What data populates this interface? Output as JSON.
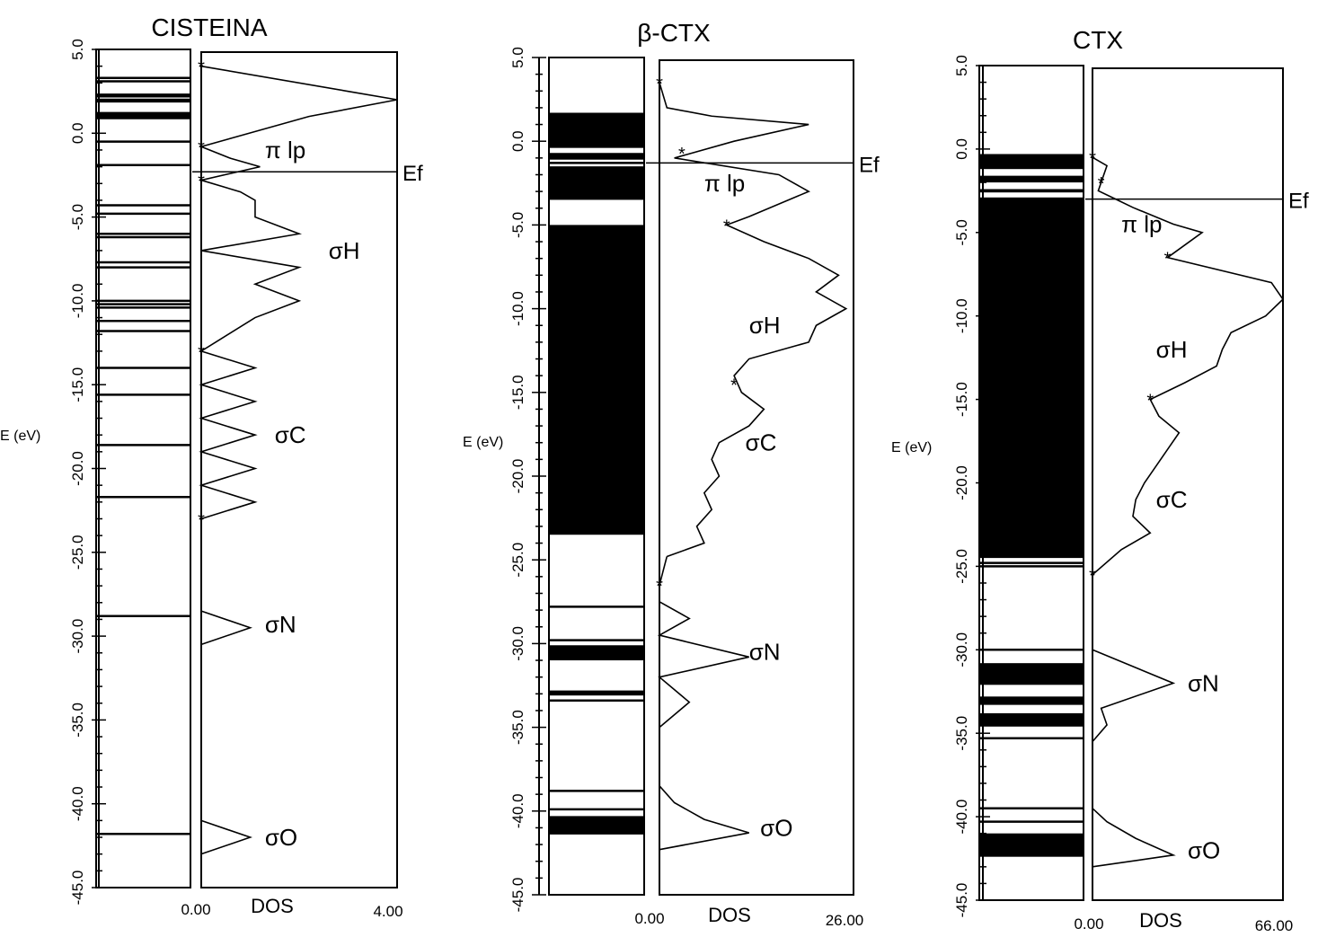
{
  "chart_data": [
    {
      "type": "line",
      "title": "CISTEINA",
      "ylabel": "E (eV)",
      "xlabel": "DOS",
      "x_min_label": "0.00",
      "x_max_label": "4.00",
      "xlim": [
        0,
        4
      ],
      "ylim": [
        -45,
        5
      ],
      "yticks": [
        "5.0",
        "0.0",
        "-5.0",
        "-10.0",
        "-15.0",
        "-20.0",
        "-25.0",
        "-30.0",
        "-35.0",
        "-40.0",
        "-45.0"
      ],
      "fermi_label": "Ef",
      "fermi_level": -2.3,
      "levels": [
        3.3,
        3.1,
        2.3,
        2.2,
        2.0,
        1.9,
        1.2,
        1.1,
        1.0,
        0.9,
        -0.5,
        -1.9,
        -4.3,
        -4.8,
        -6.0,
        -6.2,
        -7.7,
        -8.0,
        -10.0,
        -10.2,
        -10.4,
        -11.2,
        -11.8,
        -14.0,
        -15.6,
        -18.6,
        -21.7,
        -28.8,
        -41.8
      ],
      "level_bands": [],
      "dos": {
        "e": [
          4.0,
          2.5,
          2.0,
          1.0,
          -0.8,
          -1.5,
          -2.0,
          -2.8,
          -3.5,
          -4.0,
          -5.0,
          -6.0,
          -7.0,
          -8.0,
          -9.0,
          -10.0,
          -11.0,
          -13.0,
          -14.0,
          -15.0,
          -16.0,
          -17.0,
          -18.0,
          -19.0,
          -20.0,
          -21.0,
          -22.0,
          -23.0
        ],
        "dos": [
          0.0,
          3.0,
          4.0,
          2.2,
          0.0,
          0.6,
          1.2,
          0.0,
          0.8,
          1.1,
          1.1,
          2.0,
          0.0,
          2.0,
          1.1,
          2.0,
          1.1,
          0.0,
          1.1,
          0.0,
          1.1,
          0.0,
          1.1,
          0.0,
          1.1,
          0.0,
          1.1,
          0.0
        ],
        "markers": [
          {
            "e": 4.0,
            "dos": 0.0
          },
          {
            "e": -0.8,
            "dos": 0.0
          },
          {
            "e": -2.8,
            "dos": 0.0
          },
          {
            "e": -13.0,
            "dos": 0.0
          },
          {
            "e": -23.0,
            "dos": 0.0
          }
        ]
      },
      "extra_dos_segments": [
        {
          "e": [
            -28.5,
            -29.5,
            -30.5
          ],
          "dos": [
            0.0,
            1.0,
            0.0
          ]
        },
        {
          "e": [
            -41.0,
            -42.0,
            -43.0
          ],
          "dos": [
            0.0,
            1.0,
            0.0
          ]
        }
      ],
      "annotations": [
        {
          "text": "π lp",
          "e": -1.0,
          "dos": 1.3
        },
        {
          "text": "σH",
          "e": -7.0,
          "dos": 2.6
        },
        {
          "text": "σC",
          "e": -18.0,
          "dos": 1.5
        },
        {
          "text": "σN",
          "e": -29.3,
          "dos": 1.3
        },
        {
          "text": "σO",
          "e": -42.0,
          "dos": 1.3
        }
      ]
    },
    {
      "type": "line",
      "title": "β-CTX",
      "ylabel": "E (eV)",
      "xlabel": "DOS",
      "x_min_label": "0.00",
      "x_max_label": "26.00",
      "xlim": [
        0,
        26
      ],
      "ylim": [
        -45,
        5
      ],
      "yticks": [
        "5.0",
        "0.0",
        "-5.0",
        "-10.0",
        "-15.0",
        "-20.0",
        "-25.0",
        "-30.0",
        "-35.0",
        "-40.0",
        "-45.0"
      ],
      "fermi_label": "Ef",
      "fermi_level": -1.3,
      "levels": [
        -1.3,
        -2.2,
        -27.8,
        -29.8,
        -33.4,
        -38.8,
        -39.9
      ],
      "level_bands": [
        [
          1.7,
          -0.4
        ],
        [
          -0.7,
          -1.1
        ],
        [
          -1.5,
          -3.5
        ],
        [
          -5.0,
          -23.5
        ],
        [
          -30.1,
          -31.0
        ],
        [
          -32.8,
          -33.1
        ],
        [
          -40.3,
          -41.4
        ]
      ],
      "dos": {
        "e": [
          3.5,
          2.0,
          1.5,
          1.0,
          0.0,
          -1.0,
          -2.0,
          -3.0,
          -4.5,
          -5.0,
          -6.0,
          -7.0,
          -8.0,
          -9.0,
          -10.0,
          -11.0,
          -12.0,
          -13.0,
          -14.0,
          -15.0,
          -16.0,
          -17.0,
          -18.0,
          -19.0,
          -20.0,
          -21.0,
          -22.0,
          -23.0,
          -24.0,
          -24.8
        ],
        "dos": [
          0.0,
          1.0,
          7.0,
          20.0,
          10.0,
          2.0,
          16.0,
          20.0,
          12.0,
          9.0,
          14.0,
          20.0,
          24.0,
          21.0,
          25.0,
          21.0,
          20.0,
          12.0,
          10.0,
          11.0,
          14.0,
          12.0,
          8.0,
          7.0,
          8.0,
          6.0,
          7.0,
          5.0,
          6.0,
          1.0
        ],
        "markers": [
          {
            "e": 3.5,
            "dos": 0.0
          },
          {
            "e": -0.7,
            "dos": 3.0
          },
          {
            "e": -5.0,
            "dos": 9.0
          },
          {
            "e": -14.5,
            "dos": 10.0
          },
          {
            "e": -26.5,
            "dos": 0.0
          }
        ]
      },
      "extra_dos_segments": [
        {
          "e": [
            -24.8,
            -26.5
          ],
          "dos": [
            1.0,
            0.0
          ]
        },
        {
          "e": [
            -27.5,
            -28.5,
            -29.5,
            -30.8,
            -32.0,
            -33.5,
            -35.0
          ],
          "dos": [
            0.0,
            4.0,
            0.0,
            12.0,
            0.0,
            4.0,
            0.0
          ]
        },
        {
          "e": [
            -38.5,
            -39.5,
            -40.5,
            -41.3,
            -42.3
          ],
          "dos": [
            0.0,
            2.0,
            6.0,
            12.0,
            0.0
          ]
        }
      ],
      "annotations": [
        {
          "text": "π lp",
          "e": -2.5,
          "dos": 6.0
        },
        {
          "text": "σH",
          "e": -11.0,
          "dos": 12.0
        },
        {
          "text": "σC",
          "e": -18.0,
          "dos": 11.5
        },
        {
          "text": "σN",
          "e": -30.5,
          "dos": 12.0
        },
        {
          "text": "σO",
          "e": -41.0,
          "dos": 13.5
        }
      ]
    },
    {
      "type": "line",
      "title": "CTX",
      "ylabel": "E (eV)",
      "xlabel": "DOS",
      "x_min_label": "0.00",
      "x_max_label": "66.00",
      "xlim": [
        0,
        66
      ],
      "ylim": [
        -45,
        5
      ],
      "yticks": [
        "5.0",
        "0.0",
        "-5.0",
        "-10.0",
        "-15.0",
        "-20.0",
        "-25.0",
        "-30.0",
        "-35.0",
        "-40.0",
        "-45.0"
      ],
      "fermi_label": "Ef",
      "fermi_level": -3.0,
      "levels": [
        -24.8,
        -25.0,
        -30.0,
        -35.3,
        -39.5,
        -40.3
      ],
      "level_bands": [
        [
          -0.3,
          -1.2
        ],
        [
          -1.6,
          -2.0
        ],
        [
          -2.4,
          -2.6
        ],
        [
          -2.9,
          -24.5
        ],
        [
          -30.8,
          -32.1
        ],
        [
          -32.8,
          -33.3
        ],
        [
          -33.8,
          -34.6
        ],
        [
          -41.0,
          -42.4
        ]
      ],
      "dos": {
        "e": [
          -0.5,
          -1.0,
          -2.0,
          -2.5,
          -3.0,
          -3.5,
          -4.5,
          -5.0,
          -6.5,
          -8.0,
          -9.0,
          -10.0,
          -11.0,
          -12.0,
          -13.0,
          -14.0,
          -15.0,
          -16.0,
          -17.0,
          -18.0,
          -19.0,
          -20.0,
          -21.0,
          -22.0,
          -23.0,
          -24.0,
          -25.5
        ],
        "dos": [
          0.0,
          5.0,
          3.0,
          2.0,
          8.0,
          14.0,
          28.0,
          38.0,
          26.0,
          62.0,
          66.0,
          60.0,
          48.0,
          45.0,
          43.0,
          32.0,
          20.0,
          23.0,
          30.0,
          26.0,
          22.0,
          18.0,
          15.0,
          14.0,
          20.0,
          10.0,
          0.0
        ],
        "markers": [
          {
            "e": -0.5,
            "dos": 0.0
          },
          {
            "e": -2.0,
            "dos": 3.0
          },
          {
            "e": -6.5,
            "dos": 26.0
          },
          {
            "e": -15.0,
            "dos": 20.0
          },
          {
            "e": -25.5,
            "dos": 0.0
          }
        ]
      },
      "extra_dos_segments": [
        {
          "e": [
            -30.0,
            -32.0,
            -33.5,
            -34.5,
            -35.5
          ],
          "dos": [
            0.0,
            28.0,
            3.0,
            5.0,
            0.0
          ]
        },
        {
          "e": [
            -39.5,
            -40.3,
            -41.3,
            -42.3,
            -43.0
          ],
          "dos": [
            0.0,
            5.0,
            15.0,
            28.0,
            0.0
          ]
        }
      ],
      "annotations": [
        {
          "text": "π lp",
          "e": -4.5,
          "dos": 10.0
        },
        {
          "text": "σH",
          "e": -12.0,
          "dos": 22.0
        },
        {
          "text": "σC",
          "e": -21.0,
          "dos": 22.0
        },
        {
          "text": "σN",
          "e": -32.0,
          "dos": 33.0
        },
        {
          "text": "σO",
          "e": -42.0,
          "dos": 33.0
        }
      ]
    }
  ]
}
